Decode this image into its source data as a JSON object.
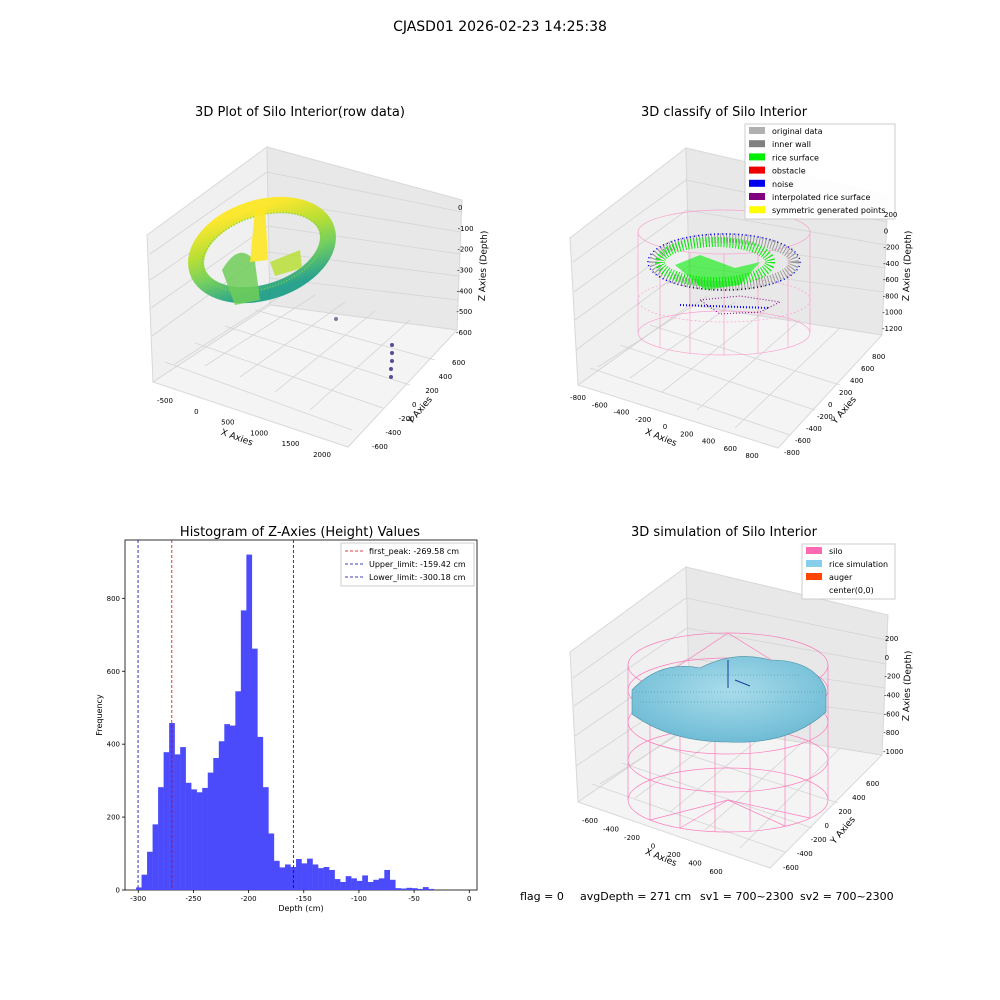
{
  "figure": {
    "suptitle": "CJASD01 2026-02-23 14:25:38",
    "footer": {
      "flag": "flag = 0",
      "avg_depth": "avgDepth = 271 cm",
      "sv1": "sv1 = 700~2300",
      "sv2": "sv2 = 700~2300"
    }
  },
  "chart_data": [
    {
      "type": "scatter",
      "projection": "3d",
      "title": "3D Plot of Silo Interior(row data)",
      "xlabel": "X Axies",
      "ylabel": "Y Axies",
      "zlabel": "Z Axies (Depth)",
      "xticks": [
        "-500",
        "0",
        "500",
        "1000",
        "1500",
        "2000"
      ],
      "yticks": [
        "-600",
        "-400",
        "-200",
        "0",
        "200",
        "400",
        "600"
      ],
      "zticks": [
        "0",
        "-100",
        "-200",
        "-300",
        "-400",
        "-500",
        "-600"
      ],
      "colormap": "viridis",
      "grid": true
    },
    {
      "type": "scatter",
      "projection": "3d",
      "title": "3D classify of Silo Interior",
      "xlabel": "X Axies",
      "ylabel": "Y Axies",
      "zlabel": "Z Axies (Depth)",
      "xticks": [
        "-800",
        "-600",
        "-400",
        "-200",
        "0",
        "200",
        "400",
        "600",
        "800"
      ],
      "yticks": [
        "-800",
        "-600",
        "-400",
        "-200",
        "0",
        "200",
        "400",
        "600",
        "800"
      ],
      "zticks": [
        "200",
        "0",
        "-200",
        "-400",
        "-600",
        "-800",
        "-1000",
        "-1200"
      ],
      "legend_position": "top-right",
      "legend": [
        {
          "label": "original data",
          "color": "#b0b0b0"
        },
        {
          "label": "inner wall",
          "color": "#808080"
        },
        {
          "label": "rice surface",
          "color": "#00ee00"
        },
        {
          "label": "obstacle",
          "color": "#ee0000"
        },
        {
          "label": "noise",
          "color": "#0000ee"
        },
        {
          "label": "interpolated rice surface",
          "color": "#800080"
        },
        {
          "label": "symmetric generated points",
          "color": "#ffff00"
        }
      ],
      "grid": true
    },
    {
      "type": "bar",
      "subtype": "histogram",
      "title": "Histogram of Z-Axies (Height) Values",
      "xlabel": "Depth (cm)",
      "ylabel": "Frequency",
      "bar_color": "#4b4bfb",
      "xlim": [
        -312,
        7
      ],
      "ylim": [
        0,
        960
      ],
      "xticks": [
        -300,
        -250,
        -200,
        -150,
        -100,
        -50,
        0
      ],
      "yticks": [
        0,
        200,
        400,
        600,
        800
      ],
      "bins": [
        [
          -302,
          7
        ],
        [
          -297,
          42
        ],
        [
          -292,
          105
        ],
        [
          -287,
          180
        ],
        [
          -282,
          282
        ],
        [
          -277,
          378
        ],
        [
          -272,
          458
        ],
        [
          -267,
          372
        ],
        [
          -262,
          392
        ],
        [
          -257,
          294
        ],
        [
          -252,
          276
        ],
        [
          -247,
          268
        ],
        [
          -242,
          280
        ],
        [
          -237,
          322
        ],
        [
          -232,
          362
        ],
        [
          -227,
          408
        ],
        [
          -222,
          455
        ],
        [
          -217,
          451
        ],
        [
          -212,
          545
        ],
        [
          -207,
          767
        ],
        [
          -202,
          920
        ],
        [
          -197,
          662
        ],
        [
          -192,
          420
        ],
        [
          -187,
          282
        ],
        [
          -182,
          155
        ],
        [
          -177,
          80
        ],
        [
          -172,
          62
        ],
        [
          -167,
          70
        ],
        [
          -162,
          63
        ],
        [
          -157,
          85
        ],
        [
          -152,
          73
        ],
        [
          -147,
          86
        ],
        [
          -142,
          70
        ],
        [
          -137,
          60
        ],
        [
          -132,
          63
        ],
        [
          -127,
          55
        ],
        [
          -122,
          30
        ],
        [
          -117,
          22
        ],
        [
          -112,
          38
        ],
        [
          -107,
          32
        ],
        [
          -102,
          25
        ],
        [
          -97,
          40
        ],
        [
          -92,
          22
        ],
        [
          -87,
          28
        ],
        [
          -82,
          32
        ],
        [
          -77,
          55
        ],
        [
          -72,
          28
        ],
        [
          -67,
          5
        ],
        [
          -62,
          4
        ],
        [
          -57,
          6
        ],
        [
          -52,
          5
        ],
        [
          -47,
          3
        ],
        [
          -42,
          8
        ],
        [
          -37,
          3
        ]
      ],
      "lines": [
        {
          "label": "first_peak: -269.58 cm",
          "x": -269.58,
          "color": "#dd0000"
        },
        {
          "label": "Upper_limit: -159.42 cm",
          "x": -159.42,
          "color": "#0000aa"
        },
        {
          "label": "Lower_limit: -300.18 cm",
          "x": -300.18,
          "color": "#0000aa"
        }
      ],
      "legend_position": "top-right",
      "grid": false
    },
    {
      "type": "area",
      "projection": "3d",
      "title": "3D simulation of Silo Interior",
      "xlabel": "X Axies",
      "ylabel": "Y Axies",
      "zlabel": "Z Axies (Depth)",
      "xticks": [
        "-600",
        "-400",
        "-200",
        "0",
        "200",
        "400",
        "600"
      ],
      "yticks": [
        "-600",
        "-400",
        "-200",
        "0",
        "200",
        "400",
        "600"
      ],
      "zticks": [
        "200",
        "0",
        "-200",
        "-400",
        "-600",
        "-800",
        "-1000"
      ],
      "legend_position": "top-right",
      "legend": [
        {
          "label": "silo",
          "color": "#ff69b4"
        },
        {
          "label": "rice simulation",
          "color": "#87ceeb"
        },
        {
          "label": "auger",
          "color": "#ff4500"
        },
        {
          "label": "center(0,0)",
          "color": "none"
        }
      ],
      "grid": true
    }
  ]
}
